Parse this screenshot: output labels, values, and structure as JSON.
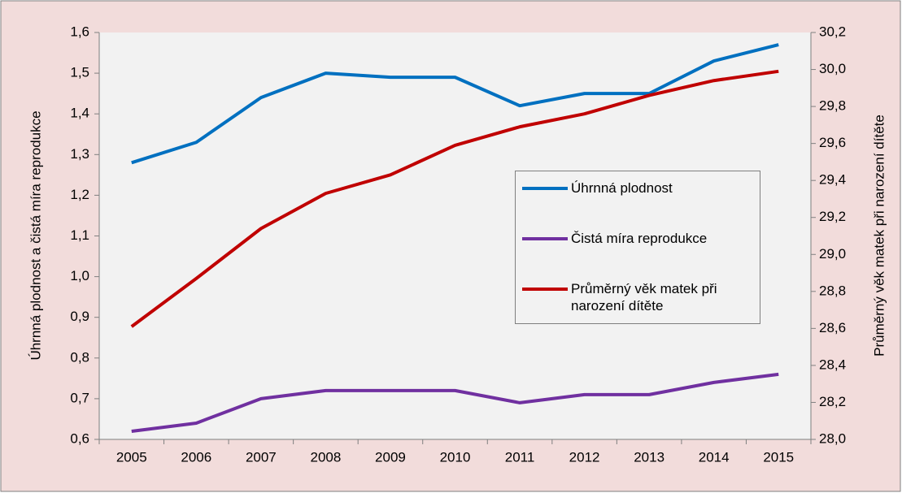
{
  "chart_data": {
    "type": "line",
    "ylabel": "Úhrnná plodnost a čistá míra reprodukce",
    "y2label": "Průměrný věk matek při narození dítěte",
    "categories": [
      "2005",
      "2006",
      "2007",
      "2008",
      "2009",
      "2010",
      "2011",
      "2012",
      "2013",
      "2014",
      "2015"
    ],
    "series": [
      {
        "name": "Úhrnná plodnost",
        "color": "#0070c0",
        "values": [
          1.28,
          1.33,
          1.44,
          1.5,
          1.49,
          1.49,
          1.42,
          1.45,
          1.45,
          1.53,
          1.57
        ]
      },
      {
        "name": "Čistá míra reprodukce",
        "color": "#7030a0",
        "values": [
          0.62,
          0.64,
          0.7,
          0.72,
          0.72,
          0.72,
          0.69,
          0.71,
          0.71,
          0.74,
          0.76
        ]
      },
      {
        "name": "Průměrný věk matek při narození dítěte",
        "color": "#c00000",
        "axis": "y2",
        "values": [
          28.61,
          28.87,
          29.14,
          29.33,
          29.43,
          29.59,
          29.69,
          29.76,
          29.86,
          29.94,
          29.99
        ]
      }
    ],
    "ylim": [
      0.6,
      1.6
    ],
    "yticks": [
      {
        "value": 0.6,
        "label": "0,6"
      },
      {
        "value": 0.7,
        "label": "0,7"
      },
      {
        "value": 0.8,
        "label": "0,8"
      },
      {
        "value": 0.9,
        "label": "0,9"
      },
      {
        "value": 1.0,
        "label": "1,0"
      },
      {
        "value": 1.1,
        "label": "1,1"
      },
      {
        "value": 1.2,
        "label": "1,2"
      },
      {
        "value": 1.3,
        "label": "1,3"
      },
      {
        "value": 1.4,
        "label": "1,4"
      },
      {
        "value": 1.5,
        "label": "1,5"
      },
      {
        "value": 1.6,
        "label": "1,6"
      }
    ],
    "y2lim": [
      28.0,
      30.2
    ],
    "y2ticks": [
      {
        "value": 28.0,
        "label": "28,0"
      },
      {
        "value": 28.2,
        "label": "28,2"
      },
      {
        "value": 28.4,
        "label": "28,4"
      },
      {
        "value": 28.6,
        "label": "28,6"
      },
      {
        "value": 28.8,
        "label": "28,8"
      },
      {
        "value": 29.0,
        "label": "29,0"
      },
      {
        "value": 29.2,
        "label": "29,2"
      },
      {
        "value": 29.4,
        "label": "29,4"
      },
      {
        "value": 29.6,
        "label": "29,6"
      },
      {
        "value": 29.8,
        "label": "29,8"
      },
      {
        "value": 30.0,
        "label": "30,0"
      },
      {
        "value": 30.2,
        "label": "30,2"
      }
    ],
    "grid": false,
    "legend": "right"
  }
}
